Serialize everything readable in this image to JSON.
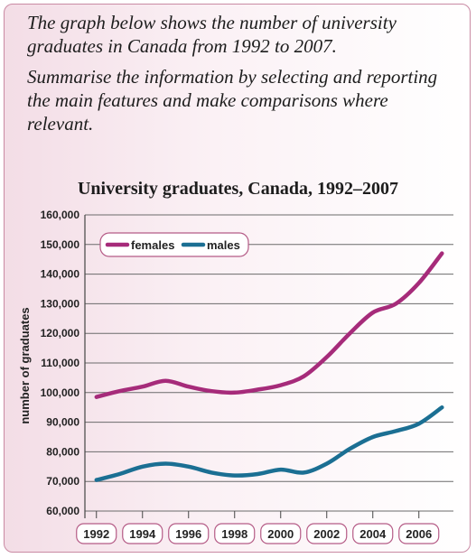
{
  "task": {
    "line1": "The graph below shows the number of university graduates in Canada from 1992 to 2007.",
    "line2": "Summarise the information by selecting and reporting the main features and make comparisons where relevant."
  },
  "chart_data": {
    "type": "line",
    "title": "University graduates, Canada, 1992–2007",
    "xlabel": "",
    "ylabel": "number of graduates",
    "x_ticks": [
      "1992",
      "1994",
      "1996",
      "1998",
      "2000",
      "2002",
      "2004",
      "2006"
    ],
    "y_ticks": [
      "60,000",
      "70,000",
      "80,000",
      "90,000",
      "100,000",
      "110,000",
      "120,000",
      "130,000",
      "140,000",
      "150,000",
      "160,000"
    ],
    "ylim": [
      60000,
      160000
    ],
    "xlim": [
      1991.5,
      2007.5
    ],
    "grid": "horizontal",
    "legend_placement": "top-left",
    "series": [
      {
        "name": "females",
        "color": "#a62b7a",
        "x": [
          1992,
          1993,
          1994,
          1995,
          1996,
          1997,
          1998,
          1999,
          2000,
          2001,
          2002,
          2003,
          2004,
          2005,
          2006,
          2007
        ],
        "values": [
          98500,
          100500,
          102000,
          104000,
          102000,
          100500,
          100000,
          101000,
          102500,
          105500,
          112000,
          120000,
          127000,
          130000,
          137000,
          147000
        ]
      },
      {
        "name": "males",
        "color": "#1b6f93",
        "x": [
          1992,
          1993,
          1994,
          1995,
          1996,
          1997,
          1998,
          1999,
          2000,
          2001,
          2002,
          2003,
          2004,
          2005,
          2006,
          2007
        ],
        "values": [
          70500,
          72500,
          75000,
          76000,
          75000,
          73000,
          72000,
          72500,
          74000,
          73000,
          76000,
          81000,
          85000,
          87000,
          89500,
          95000
        ]
      }
    ]
  }
}
